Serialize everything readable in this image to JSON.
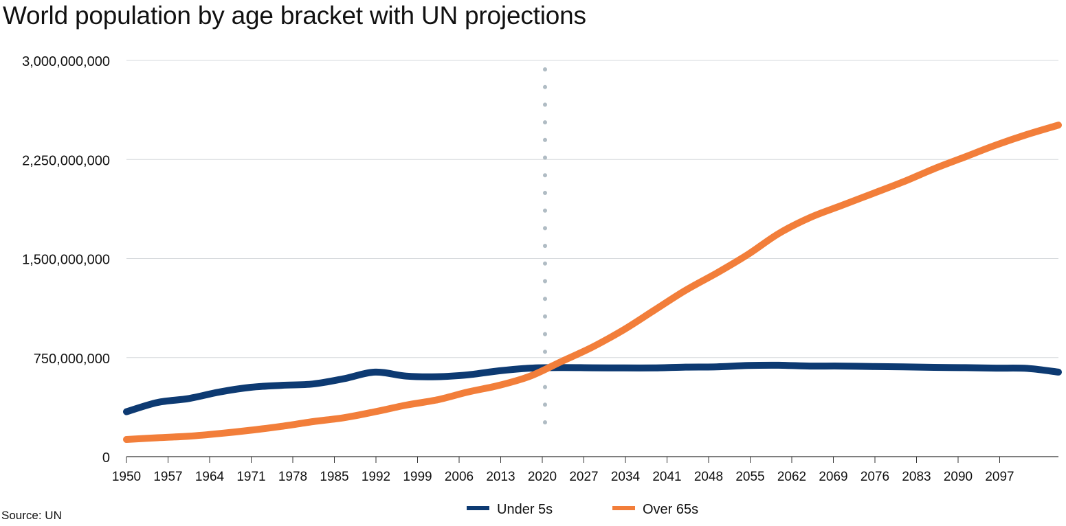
{
  "chart_data": {
    "type": "line",
    "title": "World population by age bracket with UN projections",
    "xlabel": "",
    "ylabel": "",
    "xlim": [
      1950,
      2100
    ],
    "ylim": [
      0,
      3000000000
    ],
    "y_ticks": [
      0,
      750000000,
      1500000000,
      2250000000,
      3000000000
    ],
    "y_tick_labels": [
      "0",
      "750,000,000",
      "1,500,000,000",
      "2,250,000,000",
      "3,000,000,000"
    ],
    "x_tick_labels": [
      "1950",
      "1957",
      "1964",
      "1971",
      "1978",
      "1985",
      "1992",
      "1999",
      "2006",
      "2013",
      "2020",
      "2027",
      "2034",
      "2041",
      "2048",
      "2055",
      "2062",
      "2069",
      "2076",
      "2083",
      "2090",
      "2097"
    ],
    "grid": true,
    "legend_position": "bottom",
    "reference_line": {
      "x": 2020,
      "style": "dotted",
      "color": "#b0bcc4"
    },
    "x": [
      1950,
      1955,
      1960,
      1965,
      1970,
      1975,
      1980,
      1985,
      1990,
      1995,
      2000,
      2005,
      2010,
      2015,
      2020,
      2025,
      2030,
      2035,
      2040,
      2045,
      2050,
      2055,
      2060,
      2065,
      2070,
      2075,
      2080,
      2085,
      2090,
      2095,
      2100
    ],
    "series": [
      {
        "name": "Under 5s",
        "color": "#0d3a72",
        "values": [
          340000000,
          410000000,
          440000000,
          490000000,
          525000000,
          540000000,
          550000000,
          590000000,
          640000000,
          610000000,
          605000000,
          620000000,
          650000000,
          670000000,
          675000000,
          673000000,
          672000000,
          672000000,
          678000000,
          680000000,
          690000000,
          692000000,
          686000000,
          686000000,
          682000000,
          680000000,
          676000000,
          674000000,
          670000000,
          668000000,
          640000000
        ]
      },
      {
        "name": "Over 65s",
        "color": "#f27e3a",
        "values": [
          130000000,
          143000000,
          155000000,
          175000000,
          200000000,
          230000000,
          265000000,
          295000000,
          340000000,
          390000000,
          430000000,
          490000000,
          540000000,
          610000000,
          720000000,
          830000000,
          960000000,
          1110000000,
          1260000000,
          1390000000,
          1530000000,
          1690000000,
          1810000000,
          1900000000,
          1990000000,
          2080000000,
          2180000000,
          2270000000,
          2360000000,
          2440000000,
          2510000000
        ]
      }
    ]
  },
  "source_label": "Source: UN"
}
